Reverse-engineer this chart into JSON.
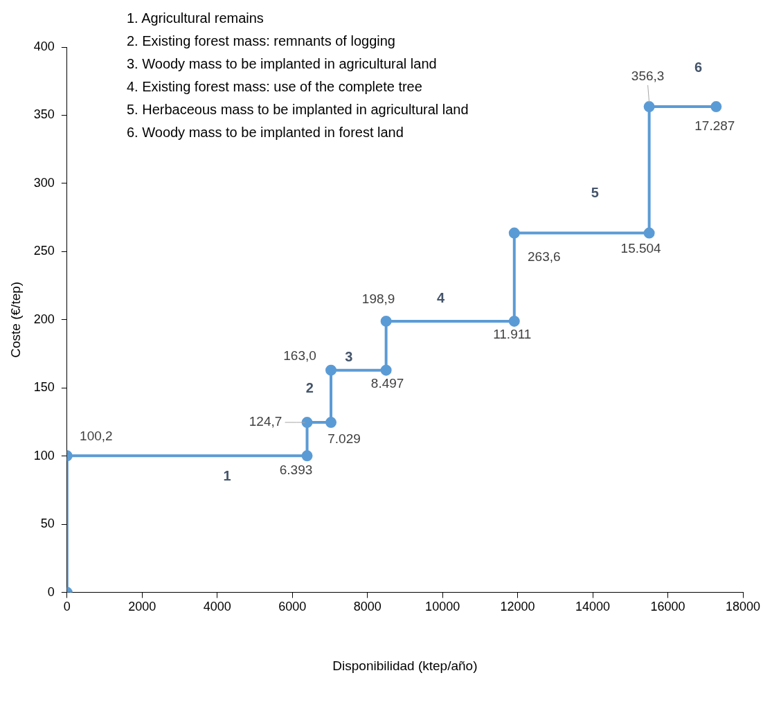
{
  "chart_data": {
    "type": "line",
    "xlabel": "Disponibilidad (ktep/año)",
    "ylabel": "Coste (€/tep)",
    "x": [
      0,
      0,
      6393,
      6393,
      7029,
      7029,
      8497,
      8497,
      11911,
      11911,
      15504,
      15504,
      17287
    ],
    "series": [
      {
        "color": "#5b9bd5",
        "values": [
          0,
          100.2,
          100.2,
          124.7,
          124.7,
          163.0,
          163.0,
          198.9,
          198.9,
          263.6,
          263.6,
          356.3,
          356.3
        ]
      }
    ],
    "xlim": [
      0,
      18000
    ],
    "xticks": [
      0,
      2000,
      4000,
      6000,
      8000,
      10000,
      12000,
      14000,
      16000,
      18000
    ],
    "ylim": [
      0,
      400
    ],
    "yticks": [
      0,
      50,
      100,
      150,
      200,
      250,
      300,
      350,
      400
    ],
    "grid": false,
    "legend": false,
    "marker": "circle",
    "line_style": "solid",
    "annotations": [
      {
        "text": "100,2",
        "x": 0,
        "y": 100.2
      },
      {
        "text": "6.393",
        "x": 6393,
        "y": 100.2
      },
      {
        "text": "124,7",
        "x": 6393,
        "y": 124.7
      },
      {
        "text": "7.029",
        "x": 7029,
        "y": 124.7
      },
      {
        "text": "163,0",
        "x": 7029,
        "y": 163.0
      },
      {
        "text": "8.497",
        "x": 8497,
        "y": 163.0
      },
      {
        "text": "198,9",
        "x": 8497,
        "y": 198.9
      },
      {
        "text": "11.911",
        "x": 11911,
        "y": 198.9
      },
      {
        "text": "263,6",
        "x": 11911,
        "y": 263.6
      },
      {
        "text": "15.504",
        "x": 15504,
        "y": 263.6
      },
      {
        "text": "356,3",
        "x": 15504,
        "y": 356.3
      },
      {
        "text": "17.287",
        "x": 17287,
        "y": 356.3
      },
      "1",
      "2",
      "3",
      "4",
      "5",
      "6",
      "1. Agricultural remains",
      "2. Existing forest mass: remnants of logging",
      "3. Woody mass to be implanted in agricultural land",
      "4. Existing forest mass: use of the complete tree",
      "5. Herbaceous mass to be implanted in agricultural land",
      "6. Woody mass to be implanted in forest land"
    ]
  }
}
